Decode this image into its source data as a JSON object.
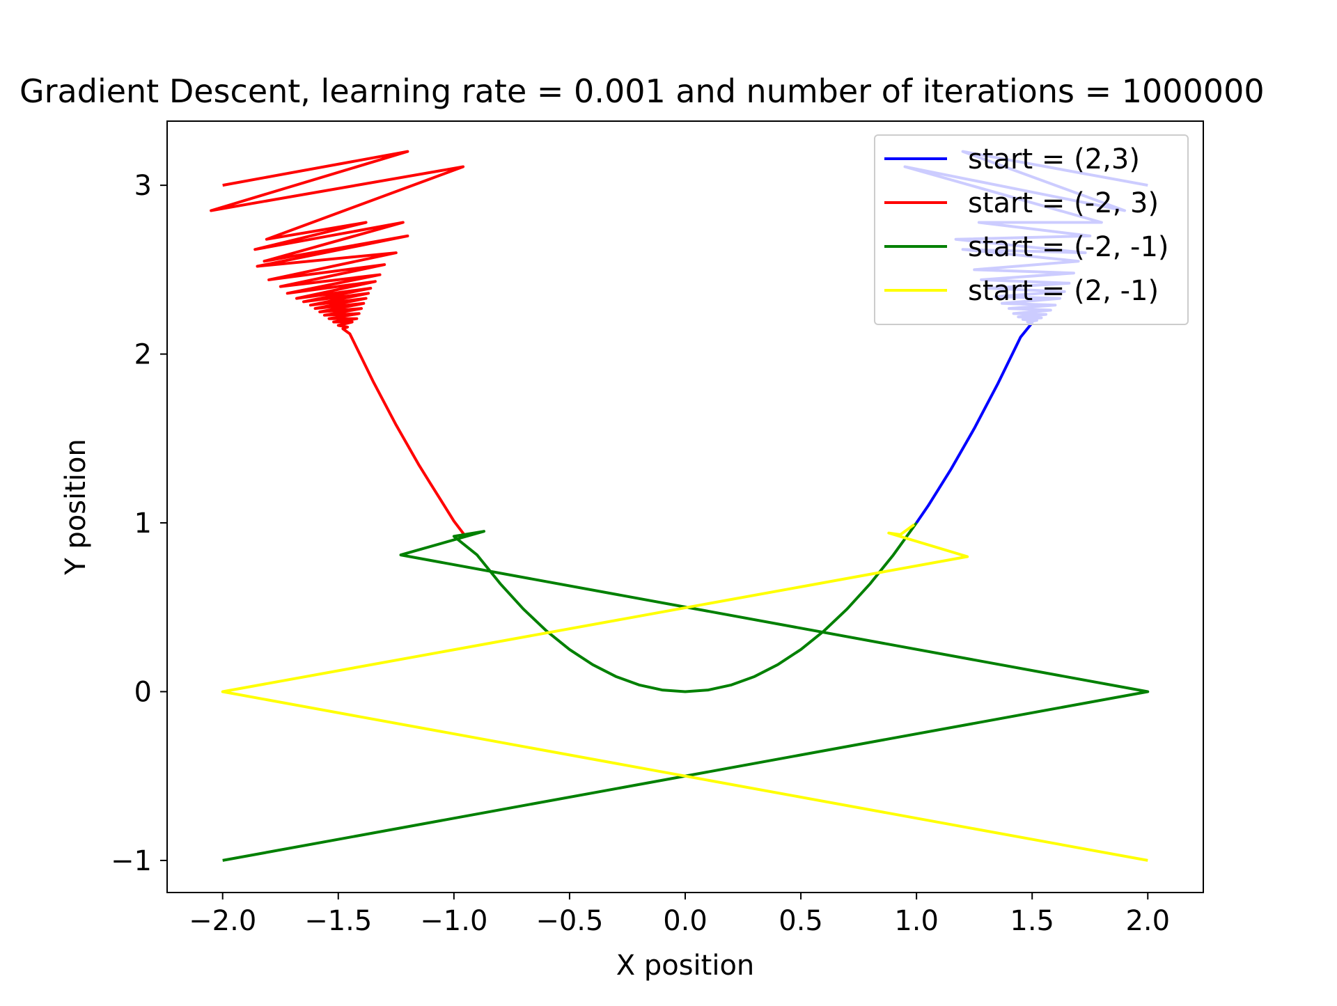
{
  "chart_data": {
    "type": "line",
    "title": "Gradient Descent, learning rate = 0.001 and number of iterations = 1000000",
    "xlabel": "X position",
    "ylabel": "Y position",
    "xlim": [
      -2.24,
      2.24
    ],
    "ylim": [
      -1.19,
      3.38
    ],
    "xticks": [
      -2.0,
      -1.5,
      -1.0,
      -0.5,
      0.0,
      0.5,
      1.0,
      1.5,
      2.0
    ],
    "xtick_labels": [
      "−2.0",
      "−1.5",
      "−1.0",
      "−0.5",
      "0.0",
      "0.5",
      "1.0",
      "1.5",
      "2.0"
    ],
    "yticks": [
      -1,
      0,
      1,
      2,
      3
    ],
    "ytick_labels": [
      "−1",
      "0",
      "1",
      "2",
      "3"
    ],
    "grid": false,
    "legend_position": "top-right",
    "series": [
      {
        "name": "start = (2,3)",
        "color": "#0000ff",
        "points": [
          [
            2.0,
            3.0
          ],
          [
            1.2,
            3.2
          ],
          [
            1.9,
            2.85
          ],
          [
            0.95,
            3.11
          ],
          [
            1.8,
            2.78
          ],
          [
            1.27,
            2.78
          ],
          [
            1.75,
            2.7
          ],
          [
            1.17,
            2.68
          ],
          [
            1.73,
            2.6
          ],
          [
            1.2,
            2.62
          ],
          [
            1.7,
            2.55
          ],
          [
            1.25,
            2.5
          ],
          [
            1.68,
            2.48
          ],
          [
            1.28,
            2.44
          ],
          [
            1.66,
            2.42
          ],
          [
            1.31,
            2.39
          ],
          [
            1.64,
            2.37
          ],
          [
            1.34,
            2.34
          ],
          [
            1.62,
            2.33
          ],
          [
            1.37,
            2.3
          ],
          [
            1.6,
            2.29
          ],
          [
            1.4,
            2.27
          ],
          [
            1.58,
            2.26
          ],
          [
            1.42,
            2.24
          ],
          [
            1.56,
            2.235
          ],
          [
            1.44,
            2.22
          ],
          [
            1.54,
            2.215
          ],
          [
            1.46,
            2.205
          ],
          [
            1.52,
            2.2
          ],
          [
            1.48,
            2.19
          ],
          [
            1.5,
            2.185
          ],
          [
            1.45,
            2.1
          ],
          [
            1.4,
            1.96
          ],
          [
            1.35,
            1.82
          ],
          [
            1.3,
            1.69
          ],
          [
            1.25,
            1.56
          ],
          [
            1.2,
            1.44
          ],
          [
            1.15,
            1.32
          ],
          [
            1.1,
            1.21
          ],
          [
            1.05,
            1.1
          ],
          [
            1.0,
            1.0
          ]
        ]
      },
      {
        "name": "start = (-2, 3)",
        "color": "#ff0000",
        "points": [
          [
            -2.0,
            3.0
          ],
          [
            -1.2,
            3.2
          ],
          [
            -2.05,
            2.85
          ],
          [
            -0.96,
            3.11
          ],
          [
            -1.81,
            2.68
          ],
          [
            -1.38,
            2.78
          ],
          [
            -1.86,
            2.62
          ],
          [
            -1.22,
            2.78
          ],
          [
            -1.82,
            2.55
          ],
          [
            -1.2,
            2.7
          ],
          [
            -1.85,
            2.52
          ],
          [
            -1.25,
            2.6
          ],
          [
            -1.8,
            2.44
          ],
          [
            -1.3,
            2.53
          ],
          [
            -1.75,
            2.4
          ],
          [
            -1.32,
            2.47
          ],
          [
            -1.72,
            2.36
          ],
          [
            -1.34,
            2.43
          ],
          [
            -1.68,
            2.33
          ],
          [
            -1.36,
            2.39
          ],
          [
            -1.65,
            2.31
          ],
          [
            -1.37,
            2.36
          ],
          [
            -1.62,
            2.29
          ],
          [
            -1.38,
            2.33
          ],
          [
            -1.6,
            2.27
          ],
          [
            -1.39,
            2.3
          ],
          [
            -1.58,
            2.25
          ],
          [
            -1.4,
            2.27
          ],
          [
            -1.56,
            2.23
          ],
          [
            -1.41,
            2.24
          ],
          [
            -1.54,
            2.21
          ],
          [
            -1.42,
            2.21
          ],
          [
            -1.52,
            2.19
          ],
          [
            -1.44,
            2.19
          ],
          [
            -1.5,
            2.17
          ],
          [
            -1.46,
            2.16
          ],
          [
            -1.48,
            2.15
          ],
          [
            -1.45,
            2.12
          ],
          [
            -1.4,
            1.98
          ],
          [
            -1.35,
            1.84
          ],
          [
            -1.3,
            1.71
          ],
          [
            -1.25,
            1.58
          ],
          [
            -1.2,
            1.46
          ],
          [
            -1.15,
            1.34
          ],
          [
            -1.1,
            1.23
          ],
          [
            -1.05,
            1.12
          ],
          [
            -1.0,
            1.01
          ],
          [
            -0.95,
            0.92
          ]
        ]
      },
      {
        "name": "start = (-2, -1)",
        "color": "#008000",
        "points": [
          [
            -2.0,
            -1.0
          ],
          [
            2.0,
            0.0
          ],
          [
            -1.23,
            0.81
          ],
          [
            -0.87,
            0.95
          ],
          [
            -1.0,
            0.92
          ],
          [
            -0.9,
            0.81
          ],
          [
            -0.8,
            0.64
          ],
          [
            -0.7,
            0.49
          ],
          [
            -0.6,
            0.36
          ],
          [
            -0.5,
            0.25
          ],
          [
            -0.4,
            0.16
          ],
          [
            -0.3,
            0.09
          ],
          [
            -0.2,
            0.04
          ],
          [
            -0.1,
            0.01
          ],
          [
            0.0,
            0.0
          ],
          [
            0.1,
            0.01
          ],
          [
            0.2,
            0.04
          ],
          [
            0.3,
            0.09
          ],
          [
            0.4,
            0.16
          ],
          [
            0.5,
            0.25
          ],
          [
            0.6,
            0.36
          ],
          [
            0.7,
            0.49
          ],
          [
            0.8,
            0.64
          ],
          [
            0.9,
            0.81
          ],
          [
            1.0,
            1.0
          ]
        ]
      },
      {
        "name": "start = (2, -1)",
        "color": "#ffff00",
        "points": [
          [
            2.0,
            -1.0
          ],
          [
            -2.0,
            0.0
          ],
          [
            1.22,
            0.8
          ],
          [
            0.88,
            0.94
          ],
          [
            0.93,
            0.93
          ],
          [
            0.99,
            0.99
          ]
        ]
      }
    ]
  }
}
